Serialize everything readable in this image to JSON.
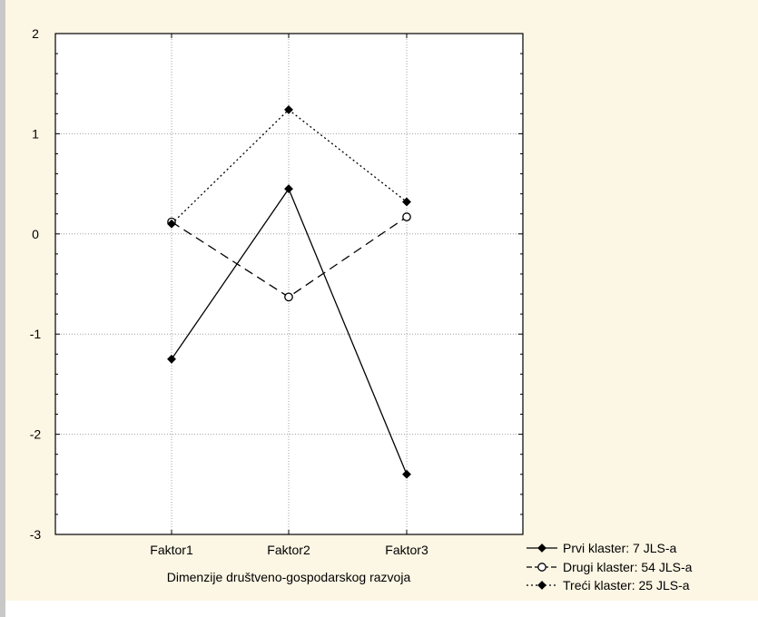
{
  "chart_data": {
    "type": "line",
    "categories": [
      "Faktor1",
      "Faktor2",
      "Faktor3"
    ],
    "xlabel": "Dimenzije društveno-gospodarskog razvoja",
    "ylabel": "",
    "ylim": [
      -3,
      2
    ],
    "yticks": [
      2,
      1,
      0,
      -1,
      -2,
      -3
    ],
    "ytick_labels": [
      "2",
      "1",
      "0",
      "-1",
      "-2",
      "-3"
    ],
    "grid": true,
    "legend_position": "bottom-right",
    "series": [
      {
        "name": "Prvi klaster: 7 JLS-a",
        "values": [
          -1.25,
          0.45,
          -2.4
        ],
        "line_style": "solid",
        "marker": "diamond-filled",
        "color": "#000000"
      },
      {
        "name": "Drugi klaster: 54 JLS-a",
        "values": [
          0.12,
          -0.63,
          0.17
        ],
        "line_style": "dashed",
        "marker": "circle-open",
        "color": "#000000"
      },
      {
        "name": "Treći klaster: 25 JLS-a",
        "values": [
          0.1,
          1.24,
          0.32
        ],
        "line_style": "dotted",
        "marker": "diamond-filled",
        "color": "#000000"
      }
    ]
  },
  "colors": {
    "panel_background": "#fcf6e4",
    "plot_background": "#ffffff",
    "grid": "#a0a0a0",
    "side_bar": "#c8c8c8"
  }
}
